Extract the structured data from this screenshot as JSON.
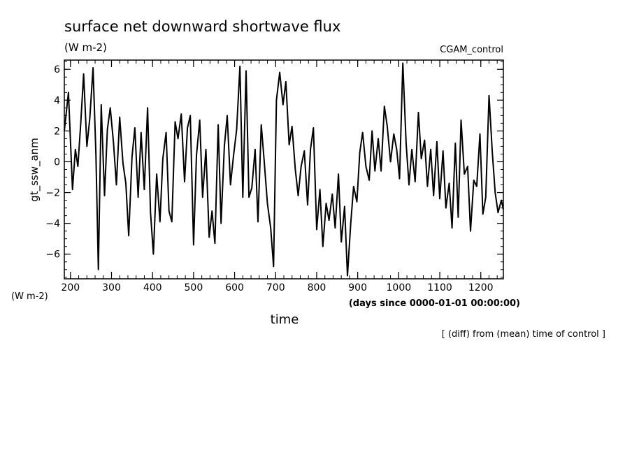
{
  "chart_data": {
    "type": "line",
    "title": "surface net downward shortwave flux",
    "units": "(W m-2)",
    "experiment": "CGAM_control",
    "ylabel": "gt_ssw_anm",
    "ylabel_units": "(W m-2)",
    "xlabel": "time",
    "xlabel_units": "(days since 0000-01-01 00:00:00)",
    "note": "[ (diff) from (mean) time of control ]",
    "xlim": [
      185,
      1255
    ],
    "ylim": [
      -7.6,
      6.6
    ],
    "xticks": [
      200,
      300,
      400,
      500,
      600,
      700,
      800,
      900,
      1000,
      1100,
      1200
    ],
    "xtick_labels": [
      "200",
      "300",
      "400",
      "500",
      "600",
      "700",
      "800",
      "900",
      "1000",
      "1100",
      "1200"
    ],
    "yticks": [
      -6,
      -4,
      -2,
      0,
      2,
      4,
      6
    ],
    "ytick_labels": [
      "−6",
      "−4",
      "−2",
      "0",
      "2",
      "4",
      "6"
    ],
    "series": [
      {
        "x": [
          185,
          195,
          205,
          212,
          218,
          225,
          232,
          240,
          247,
          255,
          262,
          268,
          275,
          283,
          290,
          297,
          305,
          312,
          320,
          328,
          335,
          342,
          350,
          357,
          365,
          372,
          380,
          388,
          395,
          402,
          410,
          418,
          425,
          433,
          440,
          447,
          455,
          462,
          470,
          478,
          485,
          492,
          500,
          507,
          515,
          522,
          530,
          538,
          545,
          552,
          560,
          567,
          575,
          582,
          590,
          597,
          605,
          613,
          620,
          628,
          635,
          642,
          650,
          657,
          665,
          672,
          680,
          688,
          695,
          702,
          710,
          718,
          725,
          733,
          740,
          748,
          755,
          762,
          770,
          778,
          785,
          792,
          800,
          808,
          815,
          823,
          830,
          838,
          845,
          853,
          860,
          868,
          875,
          883,
          890,
          898,
          905,
          912,
          920,
          928,
          935,
          942,
          950,
          957,
          965,
          972,
          980,
          988,
          995,
          1002,
          1010,
          1018,
          1025,
          1032,
          1040,
          1048,
          1055,
          1063,
          1070,
          1078,
          1085,
          1093,
          1100,
          1108,
          1115,
          1123,
          1130,
          1138,
          1145,
          1152,
          1160,
          1168,
          1175,
          1183,
          1190,
          1198,
          1205,
          1212,
          1220,
          1228,
          1235,
          1242,
          1250,
          1255
        ],
        "y": [
          2.0,
          4.5,
          -1.8,
          0.8,
          -0.3,
          2.5,
          5.7,
          1.0,
          2.8,
          6.1,
          0.5,
          -7.0,
          3.7,
          -2.2,
          2.1,
          3.5,
          1.2,
          -1.5,
          2.9,
          -0.1,
          -1.4,
          -4.8,
          0.3,
          2.2,
          -2.3,
          1.9,
          -1.8,
          3.5,
          -3.3,
          -6.0,
          -0.8,
          -3.9,
          0.2,
          1.9,
          -3.2,
          -3.9,
          2.6,
          1.5,
          3.1,
          -1.3,
          2.2,
          3.0,
          -5.4,
          0.4,
          2.7,
          -2.3,
          0.8,
          -4.9,
          -3.2,
          -5.3,
          2.4,
          -4.0,
          1.0,
          3.0,
          -1.5,
          0.3,
          2.1,
          6.2,
          -2.3,
          5.9,
          -2.3,
          -1.7,
          0.8,
          -3.9,
          2.4,
          0.1,
          -2.7,
          -4.3,
          -6.8,
          4.0,
          5.8,
          3.7,
          5.2,
          1.1,
          2.3,
          -0.5,
          -2.2,
          -0.3,
          0.7,
          -2.8,
          0.8,
          2.2,
          -4.4,
          -1.8,
          -5.5,
          -2.7,
          -3.8,
          -2.1,
          -4.3,
          -0.8,
          -5.2,
          -2.9,
          -7.4,
          -4.0,
          -1.6,
          -2.6,
          0.6,
          1.9,
          -0.3,
          -1.2,
          2.0,
          -0.6,
          1.5,
          -0.6,
          3.6,
          2.3,
          0.0,
          1.8,
          0.8,
          -1.1,
          6.4,
          1.2,
          -1.5,
          0.8,
          -1.3,
          3.2,
          0.2,
          1.4,
          -1.6,
          0.8,
          -2.2,
          1.3,
          -2.4,
          0.7,
          -3.0,
          -1.4,
          -4.3,
          1.2,
          -3.6,
          2.7,
          -0.8,
          -0.3,
          -4.5,
          -1.2,
          -1.6,
          1.8,
          -3.4,
          -2.3,
          4.3,
          0.6,
          -2.0,
          -3.3,
          -2.5,
          -3.1
        ]
      }
    ]
  }
}
